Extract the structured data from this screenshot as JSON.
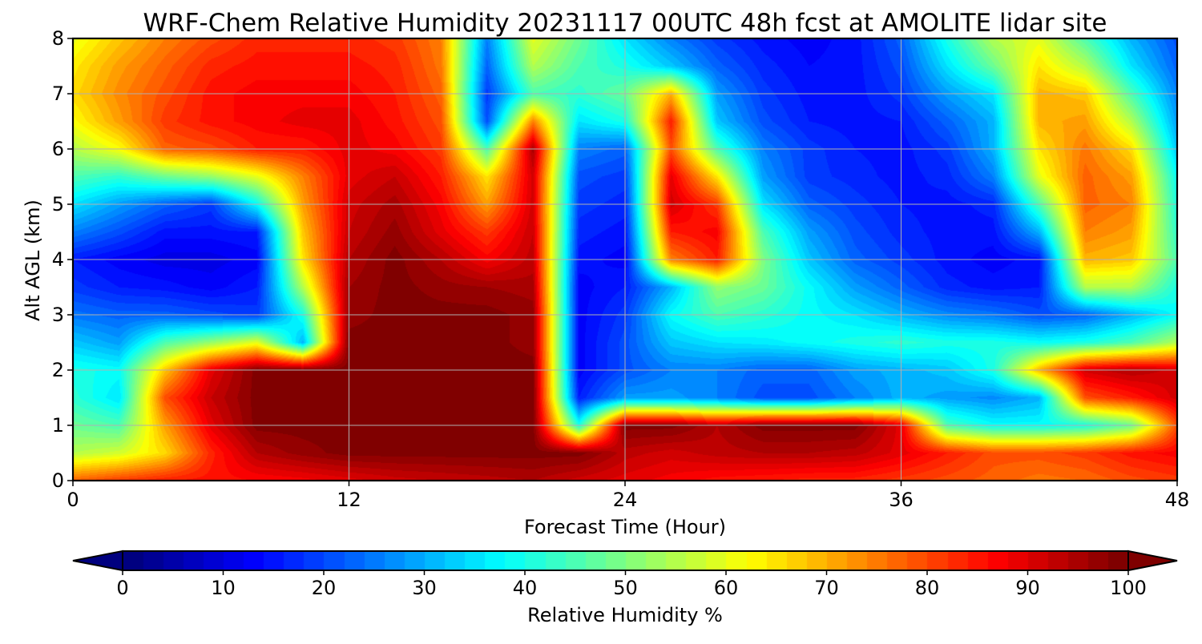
{
  "chart_data": {
    "type": "heatmap",
    "title": "WRF-Chem Relative Humidity 20231117 00UTC 48h fcst at AMOLITE lidar site",
    "xlabel": "Forecast Time (Hour)",
    "ylabel": "Alt AGL (km)",
    "xlim": [
      0,
      48
    ],
    "ylim": [
      0,
      8
    ],
    "x_ticks": [
      0,
      12,
      24,
      36,
      48
    ],
    "y_ticks": [
      0,
      1,
      2,
      3,
      4,
      5,
      6,
      7,
      8
    ],
    "grid": true,
    "colormap": "jet",
    "colorbar": {
      "label": "Relative Humidity %",
      "orientation": "horizontal",
      "placement": "bottom",
      "range": [
        0,
        100
      ],
      "ticks": [
        0,
        10,
        20,
        30,
        40,
        50,
        60,
        70,
        80,
        90,
        100
      ],
      "extend": "both",
      "under_color": "#00007f",
      "over_color": "#7f0000"
    },
    "x": [
      0,
      2,
      4,
      6,
      8,
      10,
      12,
      14,
      16,
      18,
      20,
      22,
      24,
      26,
      28,
      30,
      32,
      34,
      36,
      38,
      40,
      42,
      44,
      46,
      48
    ],
    "y": [
      0,
      0.5,
      1,
      1.5,
      2,
      2.5,
      3,
      3.5,
      4,
      4.5,
      5,
      5.5,
      6,
      6.5,
      7,
      7.5,
      8
    ],
    "z": [
      [
        78,
        82,
        85,
        86,
        87,
        88,
        90,
        92,
        93,
        94,
        95,
        92,
        90,
        88,
        86,
        85,
        84,
        84,
        82,
        80,
        78,
        76,
        77,
        80,
        82
      ],
      [
        55,
        58,
        66,
        84,
        95,
        98,
        100,
        100,
        100,
        100,
        100,
        100,
        94,
        92,
        94,
        95,
        95,
        94,
        90,
        85,
        80,
        80,
        82,
        86,
        88
      ],
      [
        48,
        45,
        72,
        90,
        100,
        100,
        100,
        100,
        100,
        100,
        100,
        40,
        100,
        100,
        95,
        100,
        100,
        100,
        90,
        45,
        38,
        38,
        40,
        48,
        80
      ],
      [
        42,
        35,
        80,
        93,
        100,
        100,
        100,
        100,
        100,
        100,
        100,
        15,
        28,
        28,
        25,
        20,
        20,
        25,
        30,
        28,
        26,
        30,
        80,
        85,
        92
      ],
      [
        40,
        38,
        68,
        90,
        100,
        100,
        100,
        100,
        100,
        100,
        100,
        12,
        20,
        25,
        25,
        22,
        22,
        28,
        30,
        32,
        40,
        70,
        92,
        95,
        92
      ],
      [
        32,
        28,
        45,
        52,
        60,
        30,
        100,
        100,
        100,
        100,
        98,
        12,
        20,
        32,
        35,
        36,
        38,
        40,
        42,
        40,
        40,
        38,
        40,
        45,
        55
      ],
      [
        24,
        22,
        22,
        20,
        18,
        40,
        98,
        100,
        100,
        100,
        98,
        12,
        18,
        38,
        45,
        42,
        38,
        35,
        30,
        26,
        24,
        20,
        22,
        30,
        38
      ],
      [
        18,
        15,
        14,
        12,
        15,
        55,
        97,
        100,
        98,
        97,
        96,
        12,
        15,
        30,
        52,
        48,
        38,
        28,
        22,
        16,
        14,
        15,
        55,
        55,
        40
      ],
      [
        15,
        12,
        10,
        10,
        12,
        65,
        95,
        100,
        95,
        88,
        94,
        14,
        12,
        75,
        85,
        50,
        32,
        22,
        18,
        14,
        12,
        14,
        70,
        68,
        45
      ],
      [
        25,
        20,
        14,
        14,
        15,
        68,
        93,
        98,
        90,
        82,
        93,
        16,
        14,
        85,
        88,
        45,
        28,
        20,
        16,
        14,
        14,
        30,
        75,
        72,
        42
      ],
      [
        35,
        28,
        22,
        18,
        38,
        72,
        92,
        96,
        88,
        72,
        92,
        18,
        16,
        92,
        82,
        35,
        22,
        18,
        15,
        14,
        16,
        45,
        78,
        75,
        40
      ],
      [
        45,
        42,
        48,
        52,
        60,
        75,
        90,
        93,
        85,
        65,
        92,
        20,
        18,
        90,
        65,
        28,
        18,
        16,
        14,
        16,
        25,
        60,
        78,
        72,
        38
      ],
      [
        55,
        62,
        78,
        80,
        85,
        85,
        90,
        88,
        82,
        45,
        96,
        25,
        22,
        80,
        45,
        25,
        18,
        15,
        14,
        18,
        30,
        65,
        76,
        66,
        32
      ],
      [
        62,
        72,
        82,
        86,
        88,
        90,
        90,
        86,
        80,
        20,
        75,
        35,
        40,
        85,
        32,
        20,
        15,
        14,
        15,
        22,
        30,
        70,
        72,
        55,
        28
      ],
      [
        66,
        74,
        80,
        86,
        88,
        88,
        88,
        85,
        78,
        18,
        45,
        42,
        48,
        70,
        28,
        18,
        14,
        14,
        18,
        28,
        35,
        70,
        68,
        45,
        25
      ],
      [
        64,
        72,
        78,
        84,
        86,
        86,
        86,
        84,
        76,
        22,
        55,
        45,
        40,
        32,
        22,
        16,
        13,
        14,
        20,
        35,
        48,
        65,
        55,
        35,
        22
      ],
      [
        60,
        68,
        75,
        80,
        84,
        84,
        84,
        82,
        75,
        25,
        60,
        48,
        35,
        25,
        18,
        14,
        12,
        14,
        22,
        40,
        55,
        60,
        45,
        30,
        20
      ]
    ]
  }
}
